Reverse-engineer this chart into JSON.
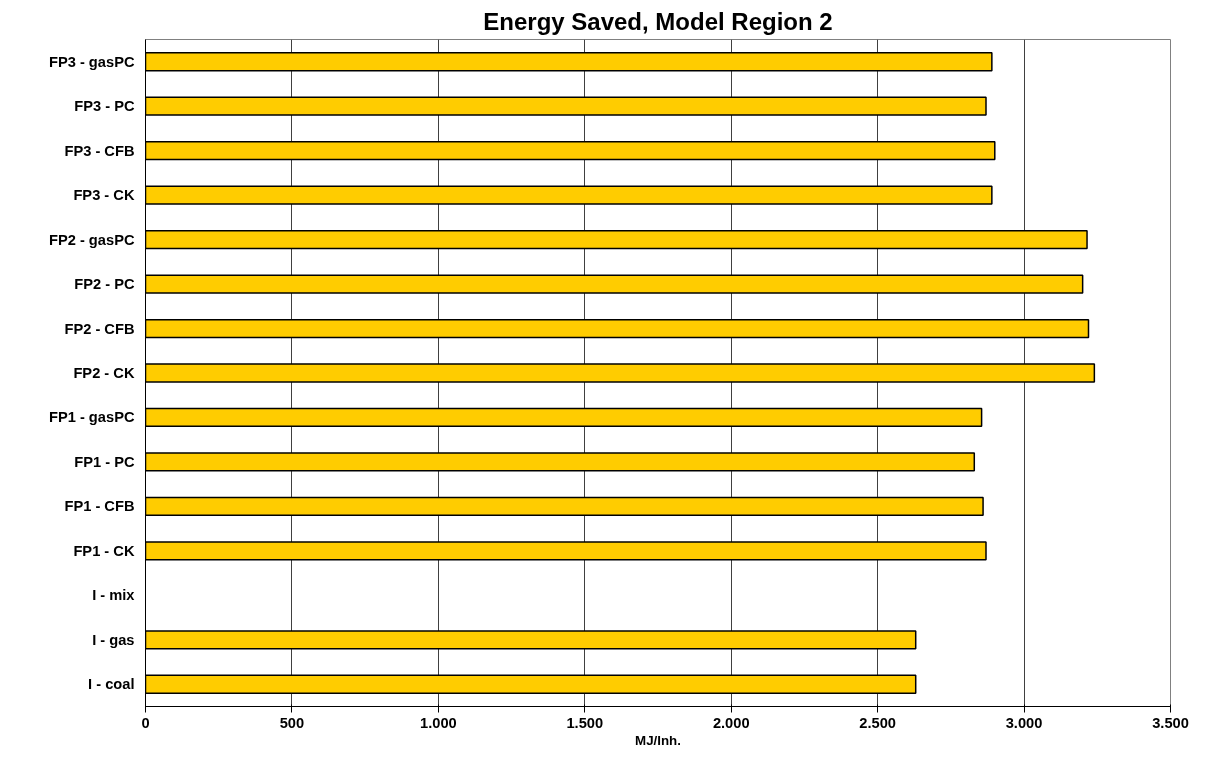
{
  "chart_data": {
    "type": "bar",
    "orientation": "horizontal",
    "title": "Energy Saved, Model Region 2",
    "xlabel": "MJ/Inh.",
    "categories": [
      "FP3 - gasPC",
      "FP3 - PC",
      "FP3 - CFB",
      "FP3 - CK",
      "FP2 - gasPC",
      "FP2 - PC",
      "FP2 - CFB",
      "FP2 - CK",
      "FP1 - gasPC",
      "FP1 - PC",
      "FP1 - CFB",
      "FP1 - CK",
      "I - mix",
      "I - gas",
      "I - coal"
    ],
    "values": [
      2890,
      2870,
      2900,
      2890,
      3215,
      3200,
      3220,
      3240,
      2855,
      2830,
      2860,
      2870,
      null,
      2630,
      2630
    ],
    "color": "#ffcc00",
    "xlim": [
      0,
      3500
    ],
    "xticks": [
      0,
      500,
      {
        "value": 1000,
        "label": "1.000"
      },
      {
        "value": 1500,
        "label": "1.500"
      },
      {
        "value": 2000,
        "label": "2.000"
      },
      {
        "value": 2500,
        "label": "2.500"
      },
      {
        "value": 3000,
        "label": "3.000"
      },
      {
        "value": 3500,
        "label": "3.500"
      }
    ],
    "grid": "x"
  }
}
